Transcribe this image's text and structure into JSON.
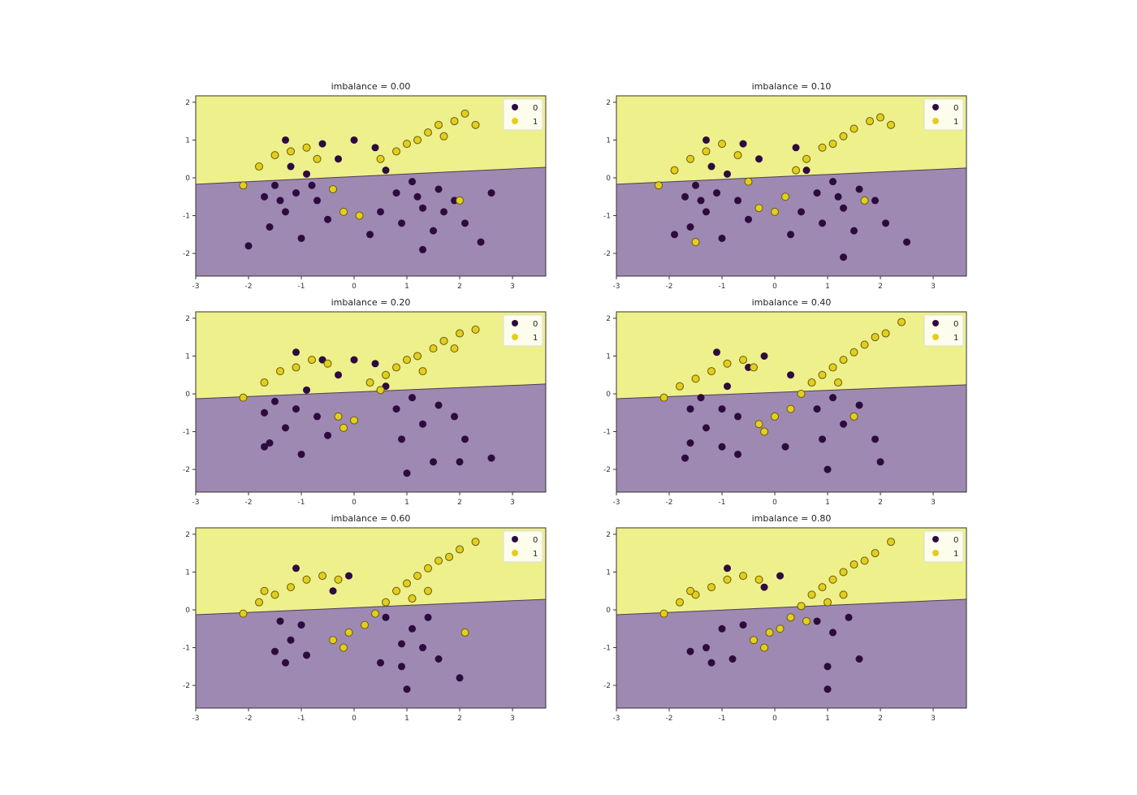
{
  "chart_data": {
    "type": "scatter",
    "layout": "3x2 grid",
    "x_ticks": [
      -3,
      -2,
      -1,
      0,
      1,
      2,
      3
    ],
    "y_ticks": [
      -2,
      -1,
      0,
      1,
      2
    ],
    "xlim": [
      -3,
      3.63
    ],
    "ylim": [
      -2.6,
      2.17
    ],
    "grid": false,
    "legend": {
      "placement": "upper right",
      "entries": [
        "0",
        "1"
      ]
    },
    "colors": {
      "class_0": "#2d0b3f",
      "class_1": "#e2cf1c",
      "region_0": "#9d89b1",
      "region_1": "#eef08c"
    },
    "panels": [
      {
        "title": "imbalance = 0.00",
        "boundary": [
          -0.17,
          0.28
        ],
        "class_0": [
          [
            -1.7,
            -0.5
          ],
          [
            -1.5,
            -0.2
          ],
          [
            -1.3,
            -0.9
          ],
          [
            -1.1,
            -0.4
          ],
          [
            -0.9,
            0.1
          ],
          [
            -1.2,
            0.3
          ],
          [
            -0.7,
            -0.6
          ],
          [
            -0.5,
            -1.1
          ],
          [
            -1.6,
            -1.3
          ],
          [
            -1.0,
            -1.6
          ],
          [
            -2.0,
            -1.8
          ],
          [
            -0.3,
            0.5
          ],
          [
            -0.6,
            0.9
          ],
          [
            -1.3,
            1.0
          ],
          [
            0.4,
            0.8
          ],
          [
            0.6,
            0.2
          ],
          [
            0.8,
            -0.4
          ],
          [
            1.1,
            -0.1
          ],
          [
            1.3,
            -0.8
          ],
          [
            1.6,
            -0.3
          ],
          [
            1.9,
            -0.6
          ],
          [
            2.1,
            -1.2
          ],
          [
            1.5,
            -1.4
          ],
          [
            0.9,
            -1.2
          ],
          [
            0.5,
            -0.9
          ],
          [
            2.4,
            -1.7
          ],
          [
            1.3,
            -1.9
          ],
          [
            0.3,
            -1.5
          ],
          [
            0.0,
            1.0
          ],
          [
            2.6,
            -0.4
          ],
          [
            -1.4,
            -0.6
          ],
          [
            -0.8,
            -0.2
          ],
          [
            1.2,
            -0.5
          ],
          [
            1.7,
            -0.9
          ]
        ],
        "class_1": [
          [
            -2.1,
            -0.2
          ],
          [
            -1.8,
            0.3
          ],
          [
            -1.5,
            0.6
          ],
          [
            -1.2,
            0.7
          ],
          [
            -0.9,
            0.8
          ],
          [
            -0.7,
            0.5
          ],
          [
            -0.4,
            -0.3
          ],
          [
            -0.2,
            -0.9
          ],
          [
            0.1,
            -1.0
          ],
          [
            0.5,
            0.5
          ],
          [
            0.8,
            0.7
          ],
          [
            1.0,
            0.9
          ],
          [
            1.2,
            1.0
          ],
          [
            1.4,
            1.2
          ],
          [
            1.6,
            1.4
          ],
          [
            1.9,
            1.5
          ],
          [
            2.1,
            1.7
          ],
          [
            2.3,
            1.4
          ],
          [
            1.7,
            1.1
          ],
          [
            2.0,
            -0.6
          ]
        ]
      },
      {
        "title": "imbalance = 0.10",
        "boundary": [
          -0.17,
          0.26
        ],
        "class_0": [
          [
            -1.7,
            -0.5
          ],
          [
            -1.5,
            -0.2
          ],
          [
            -1.3,
            -0.9
          ],
          [
            -1.1,
            -0.4
          ],
          [
            -0.9,
            0.1
          ],
          [
            -1.2,
            0.3
          ],
          [
            -0.7,
            -0.6
          ],
          [
            -0.5,
            -1.1
          ],
          [
            -1.6,
            -1.3
          ],
          [
            -1.0,
            -1.6
          ],
          [
            -1.9,
            -1.5
          ],
          [
            -0.3,
            0.5
          ],
          [
            -0.6,
            0.9
          ],
          [
            -1.3,
            1.0
          ],
          [
            0.4,
            0.8
          ],
          [
            0.6,
            0.2
          ],
          [
            0.8,
            -0.4
          ],
          [
            1.1,
            -0.1
          ],
          [
            1.3,
            -0.8
          ],
          [
            1.6,
            -0.3
          ],
          [
            1.9,
            -0.6
          ],
          [
            2.1,
            -1.2
          ],
          [
            1.5,
            -1.4
          ],
          [
            0.9,
            -1.2
          ],
          [
            0.5,
            -0.9
          ],
          [
            2.5,
            -1.7
          ],
          [
            1.3,
            -2.1
          ],
          [
            0.3,
            -1.5
          ],
          [
            -1.4,
            -0.6
          ],
          [
            1.2,
            -0.5
          ]
        ],
        "class_1": [
          [
            -2.2,
            -0.2
          ],
          [
            -1.9,
            0.2
          ],
          [
            -1.6,
            0.5
          ],
          [
            -1.3,
            0.7
          ],
          [
            -1.0,
            0.9
          ],
          [
            -0.7,
            0.6
          ],
          [
            -0.5,
            -0.1
          ],
          [
            -0.3,
            -0.8
          ],
          [
            0.0,
            -0.9
          ],
          [
            0.4,
            0.2
          ],
          [
            0.6,
            0.5
          ],
          [
            0.9,
            0.8
          ],
          [
            1.1,
            0.9
          ],
          [
            1.3,
            1.1
          ],
          [
            1.5,
            1.3
          ],
          [
            1.8,
            1.5
          ],
          [
            2.0,
            1.6
          ],
          [
            2.2,
            1.4
          ],
          [
            -1.5,
            -1.7
          ],
          [
            1.7,
            -0.6
          ],
          [
            0.2,
            -0.5
          ]
        ]
      },
      {
        "title": "imbalance = 0.20",
        "boundary": [
          -0.13,
          0.26
        ],
        "class_0": [
          [
            -1.7,
            -0.5
          ],
          [
            -1.5,
            -0.2
          ],
          [
            -1.3,
            -0.9
          ],
          [
            -1.1,
            -0.4
          ],
          [
            -0.9,
            0.1
          ],
          [
            -0.7,
            -0.6
          ],
          [
            -0.5,
            -1.1
          ],
          [
            -1.6,
            -1.3
          ],
          [
            -1.0,
            -1.6
          ],
          [
            -1.7,
            -1.4
          ],
          [
            -0.3,
            0.5
          ],
          [
            -0.6,
            0.9
          ],
          [
            -1.1,
            1.1
          ],
          [
            0.4,
            0.8
          ],
          [
            0.6,
            0.2
          ],
          [
            0.8,
            -0.4
          ],
          [
            1.1,
            -0.1
          ],
          [
            1.3,
            -0.8
          ],
          [
            1.6,
            -0.3
          ],
          [
            1.9,
            -0.6
          ],
          [
            2.1,
            -1.2
          ],
          [
            1.5,
            -1.8
          ],
          [
            0.9,
            -1.2
          ],
          [
            2.6,
            -1.7
          ],
          [
            1.0,
            -2.1
          ],
          [
            2.0,
            -1.8
          ],
          [
            0.0,
            0.9
          ]
        ],
        "class_1": [
          [
            -2.1,
            -0.1
          ],
          [
            -1.7,
            0.3
          ],
          [
            -1.4,
            0.6
          ],
          [
            -1.1,
            0.7
          ],
          [
            -0.8,
            0.9
          ],
          [
            -0.5,
            0.8
          ],
          [
            -0.3,
            -0.6
          ],
          [
            0.0,
            -0.7
          ],
          [
            -0.2,
            -0.9
          ],
          [
            0.3,
            0.3
          ],
          [
            0.6,
            0.5
          ],
          [
            0.8,
            0.7
          ],
          [
            1.0,
            0.9
          ],
          [
            1.2,
            1.0
          ],
          [
            1.5,
            1.2
          ],
          [
            1.7,
            1.4
          ],
          [
            2.0,
            1.6
          ],
          [
            2.3,
            1.7
          ],
          [
            1.9,
            1.2
          ],
          [
            0.5,
            0.1
          ],
          [
            1.3,
            0.6
          ]
        ]
      },
      {
        "title": "imbalance = 0.40",
        "boundary": [
          -0.13,
          0.24
        ],
        "class_0": [
          [
            -1.6,
            -0.4
          ],
          [
            -1.4,
            -0.1
          ],
          [
            -1.3,
            -0.9
          ],
          [
            -1.0,
            -0.4
          ],
          [
            -0.9,
            0.2
          ],
          [
            -0.7,
            -0.6
          ],
          [
            -1.6,
            -1.3
          ],
          [
            -1.0,
            -1.4
          ],
          [
            -1.7,
            -1.7
          ],
          [
            -0.5,
            0.7
          ],
          [
            -1.1,
            1.1
          ],
          [
            0.3,
            0.5
          ],
          [
            0.8,
            -0.4
          ],
          [
            1.1,
            -0.1
          ],
          [
            1.3,
            -0.8
          ],
          [
            1.6,
            -0.3
          ],
          [
            1.9,
            -1.2
          ],
          [
            0.9,
            -1.2
          ],
          [
            2.0,
            -1.8
          ],
          [
            1.0,
            -2.0
          ],
          [
            -0.2,
            1.0
          ],
          [
            0.2,
            -1.4
          ],
          [
            -0.7,
            -1.6
          ]
        ],
        "class_1": [
          [
            -2.1,
            -0.1
          ],
          [
            -1.8,
            0.2
          ],
          [
            -1.5,
            0.4
          ],
          [
            -1.2,
            0.6
          ],
          [
            -0.9,
            0.8
          ],
          [
            -0.6,
            0.9
          ],
          [
            -0.4,
            0.7
          ],
          [
            -0.3,
            -0.8
          ],
          [
            0.0,
            -0.6
          ],
          [
            -0.2,
            -1.0
          ],
          [
            0.5,
            0.0
          ],
          [
            0.7,
            0.3
          ],
          [
            0.9,
            0.5
          ],
          [
            1.1,
            0.7
          ],
          [
            1.3,
            0.9
          ],
          [
            1.5,
            1.1
          ],
          [
            1.7,
            1.3
          ],
          [
            1.9,
            1.5
          ],
          [
            2.1,
            1.6
          ],
          [
            2.4,
            1.9
          ],
          [
            1.2,
            0.3
          ],
          [
            1.5,
            -0.6
          ],
          [
            0.3,
            -0.4
          ]
        ]
      },
      {
        "title": "imbalance = 0.60",
        "boundary": [
          -0.13,
          0.28
        ],
        "class_0": [
          [
            -1.4,
            -0.3
          ],
          [
            -1.2,
            -0.8
          ],
          [
            -1.0,
            -0.4
          ],
          [
            -1.5,
            -1.1
          ],
          [
            -0.9,
            -1.2
          ],
          [
            -1.3,
            -1.4
          ],
          [
            -1.1,
            1.1
          ],
          [
            -0.4,
            0.5
          ],
          [
            0.6,
            -0.2
          ],
          [
            0.9,
            -0.9
          ],
          [
            1.1,
            -0.5
          ],
          [
            1.4,
            -0.2
          ],
          [
            1.6,
            -1.3
          ],
          [
            0.9,
            -1.5
          ],
          [
            2.0,
            -1.8
          ],
          [
            1.0,
            -2.1
          ],
          [
            0.5,
            -1.4
          ],
          [
            -0.1,
            0.9
          ],
          [
            1.3,
            -1.0
          ]
        ],
        "class_1": [
          [
            -2.1,
            -0.1
          ],
          [
            -1.8,
            0.2
          ],
          [
            -1.5,
            0.4
          ],
          [
            -1.2,
            0.6
          ],
          [
            -0.9,
            0.8
          ],
          [
            -0.6,
            0.9
          ],
          [
            -0.3,
            0.8
          ],
          [
            -0.4,
            -0.8
          ],
          [
            -0.1,
            -0.6
          ],
          [
            -0.2,
            -1.0
          ],
          [
            0.4,
            -0.1
          ],
          [
            0.6,
            0.2
          ],
          [
            0.8,
            0.5
          ],
          [
            1.0,
            0.7
          ],
          [
            1.2,
            0.9
          ],
          [
            1.4,
            1.1
          ],
          [
            1.6,
            1.3
          ],
          [
            1.8,
            1.4
          ],
          [
            2.0,
            1.6
          ],
          [
            2.3,
            1.8
          ],
          [
            1.1,
            0.3
          ],
          [
            2.1,
            -0.6
          ],
          [
            0.2,
            -0.4
          ],
          [
            -1.7,
            0.5
          ],
          [
            1.4,
            0.5
          ]
        ]
      },
      {
        "title": "imbalance = 0.80",
        "boundary": [
          -0.13,
          0.28
        ],
        "class_0": [
          [
            -1.6,
            -1.1
          ],
          [
            -1.3,
            -1.0
          ],
          [
            -1.0,
            -0.5
          ],
          [
            -0.8,
            -1.3
          ],
          [
            -1.2,
            -1.4
          ],
          [
            -0.9,
            1.1
          ],
          [
            -0.2,
            0.6
          ],
          [
            0.8,
            -0.3
          ],
          [
            1.1,
            -0.6
          ],
          [
            1.4,
            -0.2
          ],
          [
            1.6,
            -1.3
          ],
          [
            1.0,
            -1.5
          ],
          [
            1.0,
            -2.1
          ],
          [
            0.1,
            0.9
          ],
          [
            -0.6,
            -0.4
          ]
        ],
        "class_1": [
          [
            -2.1,
            -0.1
          ],
          [
            -1.8,
            0.2
          ],
          [
            -1.5,
            0.4
          ],
          [
            -1.2,
            0.6
          ],
          [
            -0.9,
            0.8
          ],
          [
            -0.6,
            0.9
          ],
          [
            -0.3,
            0.8
          ],
          [
            -0.4,
            -0.8
          ],
          [
            -0.1,
            -0.6
          ],
          [
            -0.2,
            -1.0
          ],
          [
            0.3,
            -0.2
          ],
          [
            0.5,
            0.1
          ],
          [
            0.7,
            0.4
          ],
          [
            0.9,
            0.6
          ],
          [
            1.1,
            0.8
          ],
          [
            1.3,
            1.0
          ],
          [
            1.5,
            1.2
          ],
          [
            1.7,
            1.3
          ],
          [
            1.9,
            1.5
          ],
          [
            2.2,
            1.8
          ],
          [
            1.0,
            0.2
          ],
          [
            0.1,
            -0.5
          ],
          [
            -1.6,
            0.5
          ],
          [
            1.3,
            0.4
          ],
          [
            0.6,
            -0.3
          ]
        ]
      }
    ]
  }
}
